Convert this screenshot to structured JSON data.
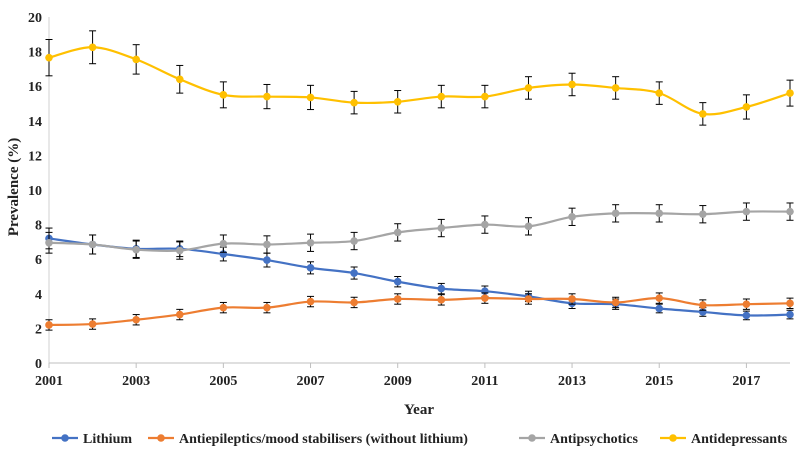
{
  "chart_data": {
    "type": "line",
    "title": "",
    "xlabel": "Year",
    "ylabel": "Prevalence (%)",
    "ylim": [
      0,
      20
    ],
    "yticks": [
      0,
      2,
      4,
      6,
      8,
      10,
      12,
      14,
      16,
      18,
      20
    ],
    "xlim": [
      2001,
      2018
    ],
    "xtick_labels": [
      "2001",
      "2003",
      "2005",
      "2007",
      "2009",
      "2011",
      "2013",
      "2015",
      "2017"
    ],
    "x": [
      2001,
      2002,
      2003,
      2004,
      2005,
      2006,
      2007,
      2008,
      2009,
      2010,
      2011,
      2012,
      2013,
      2014,
      2015,
      2016,
      2017,
      2018
    ],
    "legend_position": "bottom",
    "series": [
      {
        "name": "Lithium",
        "color": "#4472C4",
        "values": [
          7.2,
          6.85,
          6.6,
          6.6,
          6.3,
          5.95,
          5.5,
          5.2,
          4.7,
          4.3,
          4.15,
          3.85,
          3.45,
          3.4,
          3.15,
          2.95,
          2.75,
          2.8
        ],
        "errors": [
          0.6,
          0.55,
          0.5,
          0.45,
          0.4,
          0.4,
          0.35,
          0.35,
          0.3,
          0.3,
          0.3,
          0.3,
          0.3,
          0.3,
          0.25,
          0.25,
          0.25,
          0.25
        ]
      },
      {
        "name": "Antiepileptics/mood stabilisers (without lithium)",
        "color": "#ED7D31",
        "values": [
          2.2,
          2.25,
          2.5,
          2.8,
          3.2,
          3.2,
          3.55,
          3.5,
          3.7,
          3.65,
          3.75,
          3.7,
          3.7,
          3.5,
          3.75,
          3.35,
          3.4,
          3.45
        ],
        "errors": [
          0.3,
          0.3,
          0.3,
          0.3,
          0.3,
          0.3,
          0.3,
          0.3,
          0.3,
          0.3,
          0.3,
          0.3,
          0.3,
          0.3,
          0.3,
          0.3,
          0.3,
          0.3
        ]
      },
      {
        "name": "Antipsychotics",
        "color": "#A5A5A5",
        "values": [
          6.95,
          6.85,
          6.55,
          6.5,
          6.9,
          6.85,
          6.95,
          7.05,
          7.55,
          7.8,
          8.0,
          7.9,
          8.45,
          8.65,
          8.65,
          8.6,
          8.75,
          8.75
        ],
        "errors": [
          0.6,
          0.55,
          0.5,
          0.5,
          0.5,
          0.5,
          0.5,
          0.5,
          0.5,
          0.5,
          0.5,
          0.5,
          0.5,
          0.5,
          0.5,
          0.5,
          0.5,
          0.5
        ]
      },
      {
        "name": "Antidepressants",
        "color": "#FFC000",
        "values": [
          17.65,
          18.25,
          17.55,
          16.4,
          15.5,
          15.4,
          15.35,
          15.05,
          15.1,
          15.4,
          15.4,
          15.9,
          16.1,
          15.9,
          15.6,
          14.4,
          14.8,
          15.6
        ],
        "errors": [
          1.05,
          0.95,
          0.85,
          0.8,
          0.75,
          0.7,
          0.7,
          0.65,
          0.65,
          0.65,
          0.65,
          0.65,
          0.65,
          0.65,
          0.65,
          0.65,
          0.7,
          0.75
        ]
      }
    ]
  }
}
